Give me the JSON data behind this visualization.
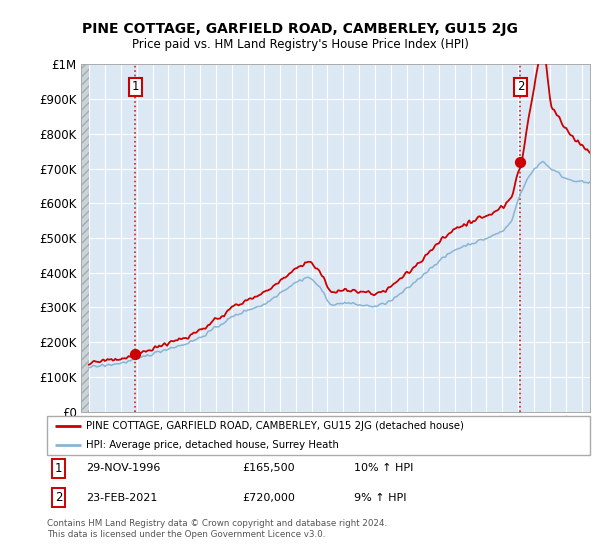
{
  "title": "PINE COTTAGE, GARFIELD ROAD, CAMBERLEY, GU15 2JG",
  "subtitle": "Price paid vs. HM Land Registry's House Price Index (HPI)",
  "yticks": [
    0,
    100000,
    200000,
    300000,
    400000,
    500000,
    600000,
    700000,
    800000,
    900000,
    1000000
  ],
  "xmin": 1993.5,
  "xmax": 2025.5,
  "ymin": 0,
  "ymax": 1000000,
  "sale1_x": 1996.91,
  "sale1_y": 165500,
  "sale1_label": "1",
  "sale1_date": "29-NOV-1996",
  "sale1_price": "£165,500",
  "sale1_hpi": "10% ↑ HPI",
  "sale2_x": 2021.14,
  "sale2_y": 720000,
  "sale2_label": "2",
  "sale2_date": "23-FEB-2021",
  "sale2_price": "£720,000",
  "sale2_hpi": "9% ↑ HPI",
  "legend_line1": "PINE COTTAGE, GARFIELD ROAD, CAMBERLEY, GU15 2JG (detached house)",
  "legend_line2": "HPI: Average price, detached house, Surrey Heath",
  "footer": "Contains HM Land Registry data © Crown copyright and database right 2024.\nThis data is licensed under the Open Government Licence v3.0.",
  "line_color_red": "#cc0000",
  "line_color_blue": "#8ab4d4",
  "bg_main": "#dce9f5",
  "bg_hatch": "#d0d8e0",
  "grid_color": "#ffffff",
  "sale_box_color": "#cc0000"
}
